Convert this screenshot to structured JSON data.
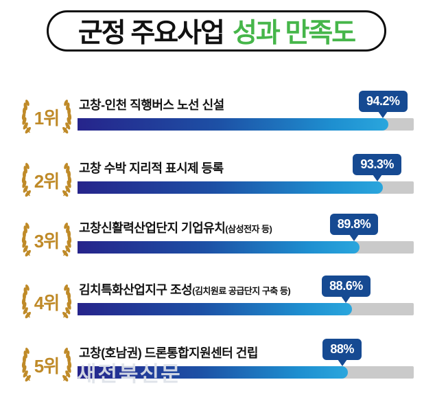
{
  "title": {
    "part1": "군정 주요사업",
    "part2": "성과 만족도"
  },
  "colors": {
    "accent": "#46b64a",
    "gold": "#bf8a28",
    "badge": "#164a92",
    "track": "#cacaca",
    "bar1": "#26248b",
    "bar2": "#1d50a5",
    "bar3": "#1e8fd0",
    "bar4": "#2aa6dd"
  },
  "watermark": "새전북신문",
  "rows": [
    {
      "rank": "1위",
      "label": "고창-인천 직행버스 노선 신설",
      "label_small": "",
      "value": 94.2,
      "value_label": "94.2%"
    },
    {
      "rank": "2위",
      "label": "고창 수박 지리적 표시제 등록",
      "label_small": "",
      "value": 93.3,
      "value_label": "93.3%"
    },
    {
      "rank": "3위",
      "label": "고창신활력산업단지 기업유치",
      "label_small": "(삼성전자 등)",
      "value": 89.8,
      "value_label": "89.8%"
    },
    {
      "rank": "4위",
      "label": "김치특화산업지구 조성",
      "label_small": "(김치원료 공급단지 구축 등)",
      "value": 88.6,
      "value_label": "88.6%"
    },
    {
      "rank": "5위",
      "label": "고창(호남권) 드론통합지원센터 건립",
      "label_small": "",
      "value": 88,
      "value_label": "88%"
    }
  ],
  "chart_data": {
    "type": "bar",
    "orientation": "horizontal",
    "title": "군정 주요사업 성과 만족도",
    "ranks": [
      "1위",
      "2위",
      "3위",
      "4위",
      "5위"
    ],
    "categories": [
      "고창-인천 직행버스 노선 신설",
      "고창 수박 지리적 표시제 등록",
      "고창신활력산업단지 기업유치(삼성전자 등)",
      "김치특화산업지구 조성(김치원료 공급단지 구축 등)",
      "고창(호남권) 드론통합지원센터 건립"
    ],
    "values": [
      94.2,
      93.3,
      89.8,
      88.6,
      88.0
    ],
    "value_labels": [
      "94.2%",
      "93.3%",
      "89.8%",
      "88.6%",
      "88%"
    ],
    "unit": "%",
    "xlim": [
      0,
      100
    ],
    "grid": false,
    "legend": "none"
  }
}
